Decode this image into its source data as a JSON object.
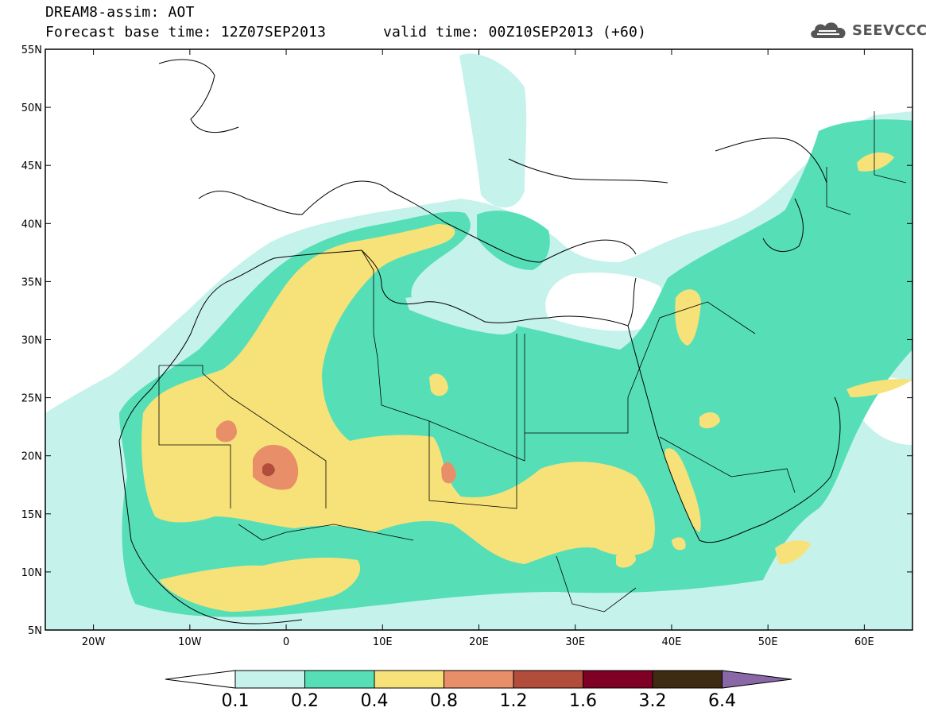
{
  "header": {
    "line1": "DREAM8-assim: AOT",
    "base_time": "Forecast base time: 12Z07SEP2013",
    "valid_time": "valid time: 00Z10SEP2013 (+60)"
  },
  "logo": {
    "text": "SEEVCCC",
    "icon": "cloud-icon"
  },
  "map": {
    "lon_range": [
      -25,
      65
    ],
    "lat_range": [
      5,
      55
    ],
    "lat_ticks": [
      {
        "v": 55,
        "label": "55N"
      },
      {
        "v": 50,
        "label": "50N"
      },
      {
        "v": 45,
        "label": "45N"
      },
      {
        "v": 40,
        "label": "40N"
      },
      {
        "v": 35,
        "label": "35N"
      },
      {
        "v": 30,
        "label": "30N"
      },
      {
        "v": 25,
        "label": "25N"
      },
      {
        "v": 20,
        "label": "20N"
      },
      {
        "v": 15,
        "label": "15N"
      },
      {
        "v": 10,
        "label": "10N"
      },
      {
        "v": 5,
        "label": "5N"
      }
    ],
    "lon_ticks": [
      {
        "v": -20,
        "label": "20W"
      },
      {
        "v": -10,
        "label": "10W"
      },
      {
        "v": 0,
        "label": "0"
      },
      {
        "v": 10,
        "label": "10E"
      },
      {
        "v": 20,
        "label": "20E"
      },
      {
        "v": 30,
        "label": "30E"
      },
      {
        "v": 40,
        "label": "40E"
      },
      {
        "v": 50,
        "label": "50E"
      },
      {
        "v": 60,
        "label": "60E"
      }
    ]
  },
  "colorbar": {
    "under_color": "#ffffff",
    "over_color": "#8a68a8",
    "colors": [
      "#c6f2ec",
      "#56dfb7",
      "#f7e27a",
      "#e88f6a",
      "#b24d3c",
      "#7e0025",
      "#3f2a14"
    ],
    "labels": [
      "0.1",
      "0.2",
      "0.4",
      "0.8",
      "1.2",
      "1.6",
      "3.2",
      "6.4"
    ]
  },
  "colors": {
    "c01": "#c6f2ec",
    "c02": "#56dfb7",
    "c04": "#f7e27a",
    "c08": "#e88f6a",
    "c12": "#b24d3c"
  }
}
